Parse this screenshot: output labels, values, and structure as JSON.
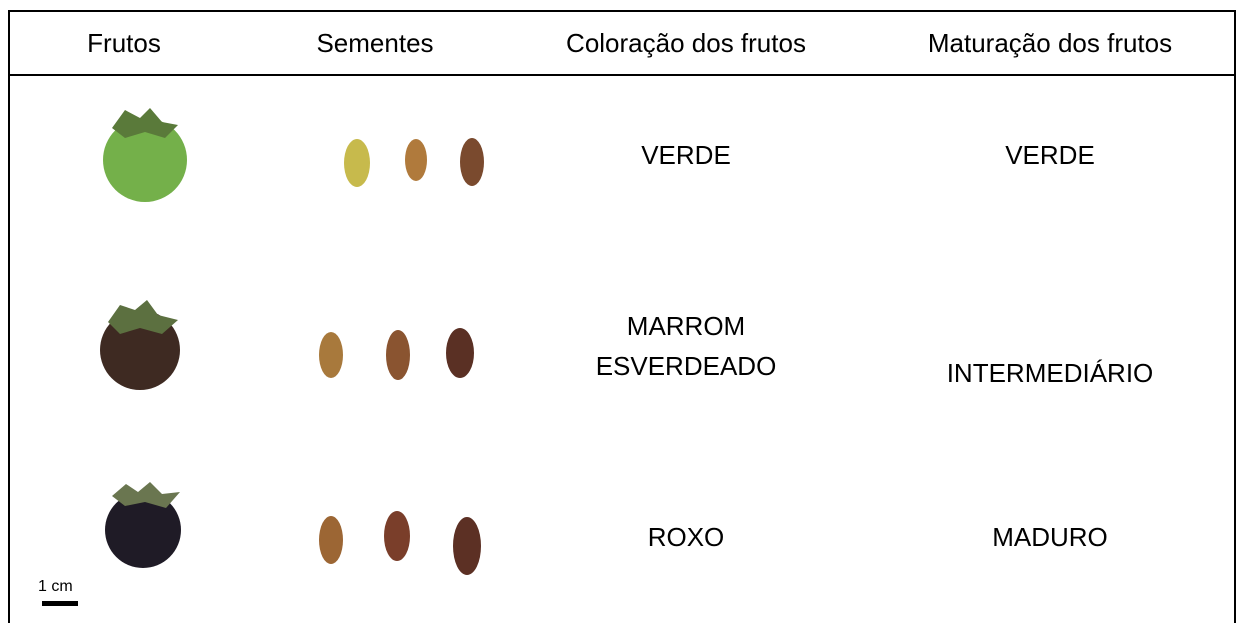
{
  "table": {
    "headers": [
      "Frutos",
      "Sementes",
      "Coloração dos frutos",
      "Maturação dos frutos"
    ],
    "rows": [
      [
        "VERDE",
        "VERDE"
      ],
      [
        "MARROM ESVERDEADO",
        "INTERMEDIÁRIO"
      ],
      [
        "ROXO",
        "MADURO"
      ]
    ]
  },
  "scale_bar": "1 cm"
}
